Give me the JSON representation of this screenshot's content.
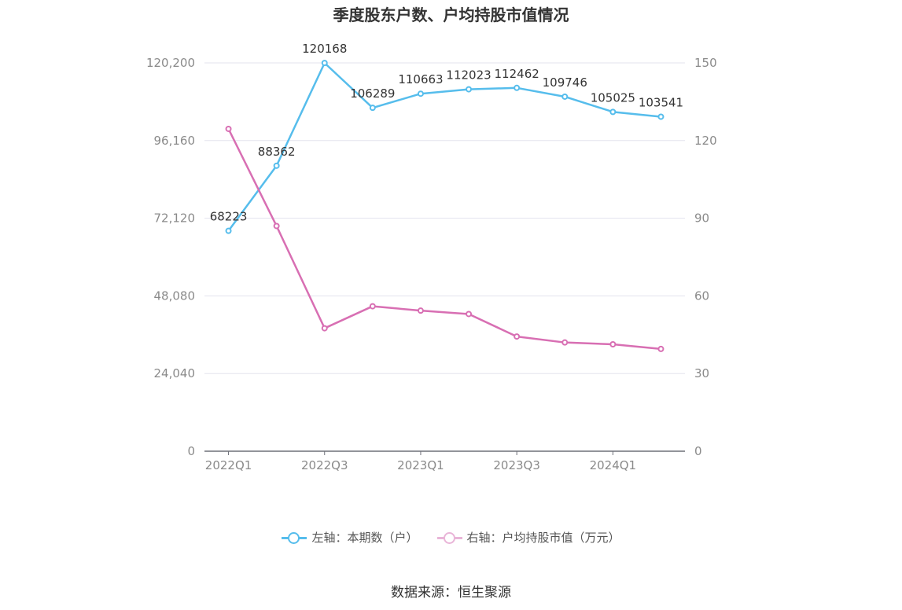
{
  "title": "季度股东户数、户均持股市值情况",
  "source": "数据来源：恒生聚源",
  "colors": {
    "left_series": "#56bdec",
    "right_series": "#d86fb3",
    "grid": "#e3e3ee",
    "axis": "#6e7079"
  },
  "legend": {
    "left": "左轴：本期数（户）",
    "right": "右轴：户均持股市值（万元）"
  },
  "chart_data": {
    "type": "line",
    "x": [
      "2022Q1",
      "2022Q2",
      "2022Q3",
      "2022Q4",
      "2023Q1",
      "2023Q2",
      "2023Q3",
      "2023Q4",
      "2024Q1",
      "2024Q2"
    ],
    "x_tick_labels": [
      "2022Q1",
      "2022Q3",
      "2023Q1",
      "2023Q3",
      "2024Q1"
    ],
    "y_left": {
      "range": [
        0,
        120200
      ],
      "ticks": [
        "0",
        "24,040",
        "48,080",
        "72,120",
        "96,160",
        "120,200"
      ],
      "tick_values": [
        0,
        24040,
        48080,
        72120,
        96160,
        120200
      ]
    },
    "y_right": {
      "range": [
        0,
        150
      ],
      "ticks": [
        "0",
        "30",
        "60",
        "90",
        "120",
        "150"
      ],
      "tick_values": [
        0,
        30,
        60,
        90,
        120,
        150
      ]
    },
    "grid": true,
    "legend_position": "bottom",
    "series": [
      {
        "name": "左轴：本期数（户）",
        "axis": "left",
        "values": [
          68223,
          88362,
          120168,
          106289,
          110663,
          112023,
          112462,
          109746,
          105025,
          103541
        ],
        "labels": [
          "68223",
          "88362",
          "120168",
          "106289",
          "110663",
          "112023",
          "112462",
          "109746",
          "105025",
          "103541"
        ]
      },
      {
        "name": "右轴：户均持股市值（万元）",
        "axis": "right",
        "values": [
          124.5,
          87.0,
          47.5,
          56.0,
          54.3,
          53.0,
          44.3,
          42.0,
          41.3,
          39.5
        ]
      }
    ]
  }
}
